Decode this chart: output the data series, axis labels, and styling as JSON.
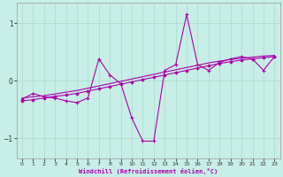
{
  "xlabel": "Windchill (Refroidissement éolien,°C)",
  "background_color": "#c8eee8",
  "grid_color": "#b0ddd0",
  "line_color": "#aa00aa",
  "x": [
    0,
    1,
    2,
    3,
    4,
    5,
    6,
    7,
    8,
    9,
    10,
    11,
    12,
    13,
    14,
    15,
    16,
    17,
    18,
    19,
    20,
    21,
    22,
    23
  ],
  "y_main": [
    -0.32,
    -0.22,
    -0.28,
    -0.3,
    -0.35,
    -0.38,
    -0.3,
    0.38,
    0.1,
    -0.05,
    -0.65,
    -1.05,
    -1.05,
    0.18,
    0.28,
    1.15,
    0.28,
    0.18,
    0.32,
    0.38,
    0.42,
    0.38,
    0.18,
    0.42
  ],
  "y_trend1": [
    -0.35,
    -0.33,
    -0.3,
    -0.27,
    -0.25,
    -0.22,
    -0.18,
    -0.14,
    -0.1,
    -0.06,
    -0.02,
    0.02,
    0.06,
    0.1,
    0.14,
    0.18,
    0.22,
    0.26,
    0.3,
    0.33,
    0.36,
    0.38,
    0.4,
    0.42
  ],
  "y_trend2": [
    -0.3,
    -0.28,
    -0.26,
    -0.23,
    -0.2,
    -0.17,
    -0.13,
    -0.09,
    -0.05,
    -0.01,
    0.03,
    0.07,
    0.11,
    0.15,
    0.19,
    0.23,
    0.27,
    0.31,
    0.34,
    0.37,
    0.39,
    0.41,
    0.43,
    0.44
  ],
  "ylim": [
    -1.35,
    1.35
  ],
  "yticks": [
    -1,
    0,
    1
  ],
  "xlim": [
    -0.5,
    23.5
  ],
  "xticks": [
    0,
    1,
    2,
    3,
    4,
    5,
    6,
    7,
    8,
    9,
    10,
    11,
    12,
    13,
    14,
    15,
    16,
    17,
    18,
    19,
    20,
    21,
    22,
    23
  ]
}
